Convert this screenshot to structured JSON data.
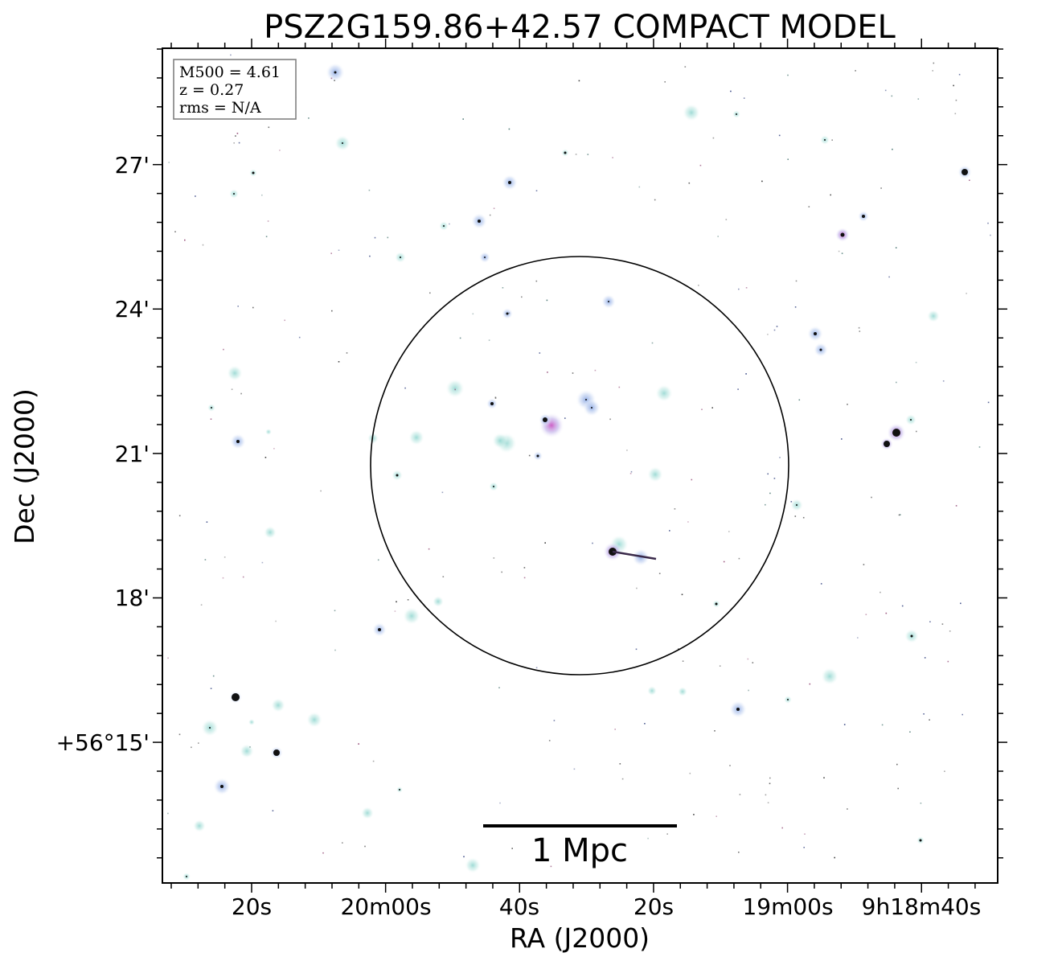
{
  "title": "PSZ2G159.86+42.57 COMPACT MODEL",
  "axes": {
    "xlabel": "RA (J2000)",
    "ylabel": "Dec (J2000)",
    "x_ticks": [
      "20s",
      "20m00s",
      "40s",
      "20s",
      "19m00s",
      "9h18m40s"
    ],
    "y_ticks": [
      "27'",
      "24'",
      "21'",
      "18'",
      "+56°15'"
    ]
  },
  "info_box": {
    "line1": "M500 = 4.61",
    "line2": "z = 0.27",
    "line3": "rms = N/A"
  },
  "scale_bar": {
    "label": "1 Mpc"
  },
  "colors": {
    "frame": "#000000",
    "source_core": "#111111",
    "halo_cyan": "#8fd3cf",
    "halo_blue": "#9fb8e6",
    "halo_magenta": "#d36fc6",
    "info_border": "#808080"
  }
}
